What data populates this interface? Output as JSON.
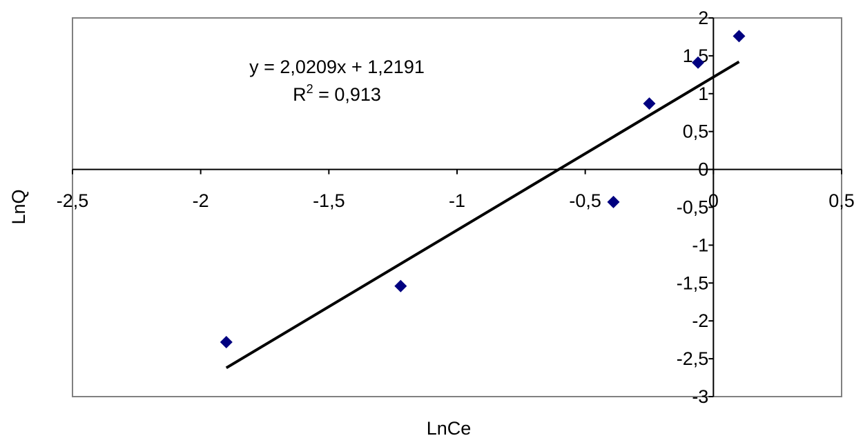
{
  "chart_data": {
    "type": "scatter",
    "xlabel": "LnCe",
    "ylabel": "LnQ",
    "xlim": [
      -2.5,
      0.5
    ],
    "ylim": [
      -3,
      2
    ],
    "x_ticks": [
      -2.5,
      -2,
      -1.5,
      -1,
      -0.5,
      0,
      0.5
    ],
    "x_tick_labels": [
      "-2,5",
      "-2",
      "-1,5",
      "-1",
      "-0,5",
      "0",
      "0,5"
    ],
    "y_ticks": [
      2,
      1.5,
      1,
      0.5,
      0,
      -0.5,
      -1,
      -1.5,
      -2,
      -2.5,
      -3
    ],
    "y_tick_labels": [
      "2",
      "1,5",
      "1",
      "0,5",
      "0",
      "-0,5",
      "-1",
      "-1,5",
      "-2",
      "-2,5",
      "-3"
    ],
    "grid": false,
    "legend": "none",
    "marker_color": "#000080",
    "series": [
      {
        "points": [
          {
            "x": -1.9,
            "y": -2.28
          },
          {
            "x": -1.22,
            "y": -1.54
          },
          {
            "x": -0.39,
            "y": -0.43
          },
          {
            "x": -0.25,
            "y": 0.87
          },
          {
            "x": -0.06,
            "y": 1.41
          },
          {
            "x": 0.1,
            "y": 1.76
          }
        ]
      }
    ],
    "trendline": {
      "type": "linear",
      "slope": 2.0209,
      "intercept": 1.2191,
      "x_range": [
        -1.9,
        0.1
      ],
      "equation_text": "y = 2,0209x + 1,2191",
      "r2_prefix": "R",
      "r2_sup": "2",
      "r2_value_text": " = 0,913"
    }
  }
}
